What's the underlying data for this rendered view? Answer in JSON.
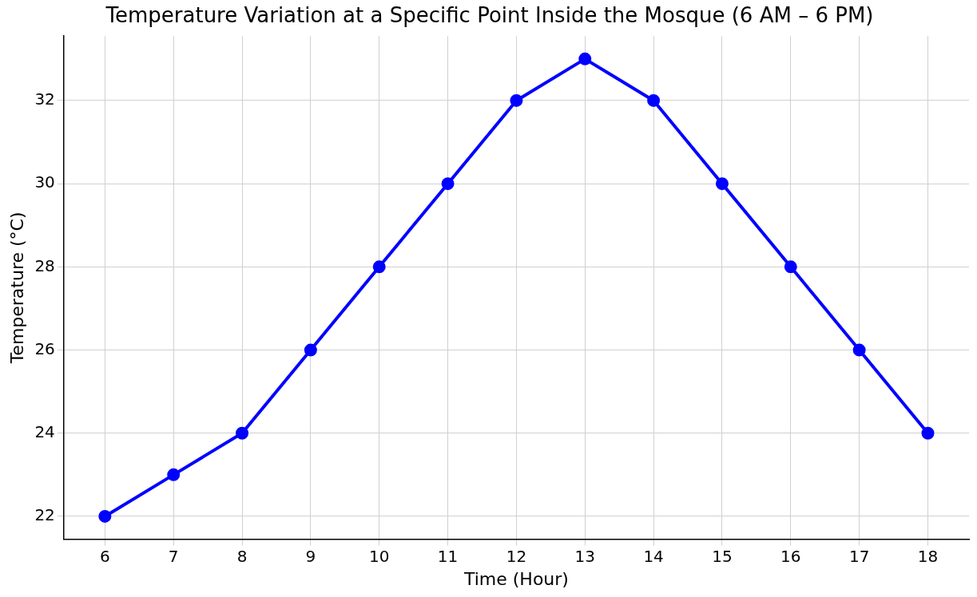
{
  "chart_data": {
    "type": "line",
    "title": "Temperature Variation at a Specific Point Inside the Mosque (6 AM – 6 PM)",
    "xlabel": "Time (Hour)",
    "ylabel": "Temperature (°C)",
    "x": [
      6,
      7,
      8,
      9,
      10,
      11,
      12,
      13,
      14,
      15,
      16,
      17,
      18
    ],
    "series": [
      {
        "color": "#0000ff",
        "values": [
          22,
          23,
          24,
          26,
          28,
          30,
          32,
          33,
          32,
          30,
          28,
          26,
          24
        ]
      }
    ],
    "xlim": [
      5.4,
      18.6
    ],
    "xticks": [
      6,
      7,
      8,
      9,
      10,
      11,
      12,
      13,
      14,
      15,
      16,
      17,
      18
    ],
    "ylim": [
      21.45,
      33.55
    ],
    "yticks": [
      22,
      24,
      26,
      28,
      30,
      32
    ],
    "grid": true,
    "legend": false,
    "marker": "circle",
    "line_style": "solid"
  }
}
